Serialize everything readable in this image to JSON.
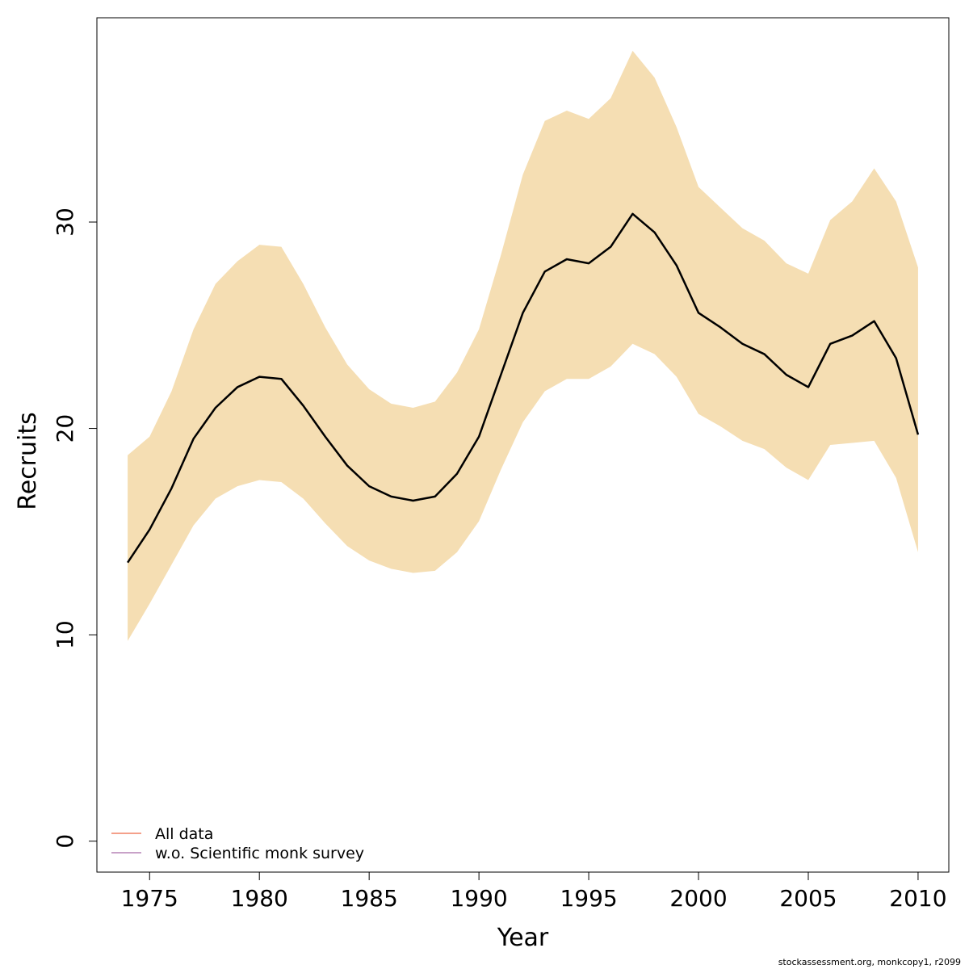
{
  "chart_data": {
    "type": "line",
    "title": "",
    "xlabel": "Year",
    "ylabel": "Recruits",
    "xlim": [
      1972.6,
      2011.4
    ],
    "ylim": [
      -1.5,
      39.9
    ],
    "x_ticks": [
      1975,
      1980,
      1985,
      1990,
      1995,
      2000,
      2005,
      2010
    ],
    "y_ticks": [
      0,
      10,
      20,
      30
    ],
    "grid": false,
    "legend_position": "bottom-left",
    "x": [
      1974,
      1975,
      1976,
      1977,
      1978,
      1979,
      1980,
      1981,
      1982,
      1983,
      1984,
      1985,
      1986,
      1987,
      1988,
      1989,
      1990,
      1991,
      1992,
      1993,
      1994,
      1995,
      1996,
      1997,
      1998,
      1999,
      2000,
      2001,
      2002,
      2003,
      2004,
      2005,
      2006,
      2007,
      2008,
      2009,
      2010
    ],
    "series": [
      {
        "kind": "line",
        "color": "#000000",
        "values": [
          13.5,
          15.1,
          17.1,
          19.5,
          21.0,
          22.0,
          22.5,
          22.4,
          21.1,
          19.6,
          18.2,
          17.2,
          16.7,
          16.5,
          16.7,
          17.8,
          19.6,
          22.6,
          25.6,
          27.6,
          28.2,
          28.0,
          28.8,
          30.4,
          29.5,
          27.9,
          25.6,
          24.9,
          24.1,
          23.6,
          22.6,
          22.0,
          24.1,
          24.5,
          25.2,
          23.4,
          19.7
        ]
      },
      {
        "kind": "band",
        "color": "#F5DEB3",
        "lower": [
          9.7,
          11.5,
          13.4,
          15.3,
          16.6,
          17.2,
          17.5,
          17.4,
          16.6,
          15.4,
          14.3,
          13.6,
          13.2,
          13.0,
          13.1,
          14.0,
          15.5,
          18.0,
          20.3,
          21.8,
          22.4,
          22.4,
          23.0,
          24.1,
          23.6,
          22.5,
          20.7,
          20.1,
          19.4,
          19.0,
          18.1,
          17.5,
          19.2,
          19.3,
          19.4,
          17.6,
          14.0
        ],
        "upper": [
          18.7,
          19.6,
          21.8,
          24.8,
          27.0,
          28.1,
          28.9,
          28.8,
          27.0,
          24.9,
          23.1,
          21.9,
          21.2,
          21.0,
          21.3,
          22.7,
          24.8,
          28.4,
          32.3,
          34.9,
          35.4,
          35.0,
          36.0,
          38.3,
          37.0,
          34.6,
          31.7,
          30.7,
          29.7,
          29.1,
          28.0,
          27.5,
          30.1,
          31.0,
          32.6,
          31.0,
          27.8
        ]
      }
    ],
    "legend": [
      {
        "label": "All data",
        "color": "#F4A08A"
      },
      {
        "label": "w.o. Scientific monk survey",
        "color": "#C8A2C8"
      }
    ]
  },
  "footer": "stockassessment.org, monkcopy1, r2099"
}
